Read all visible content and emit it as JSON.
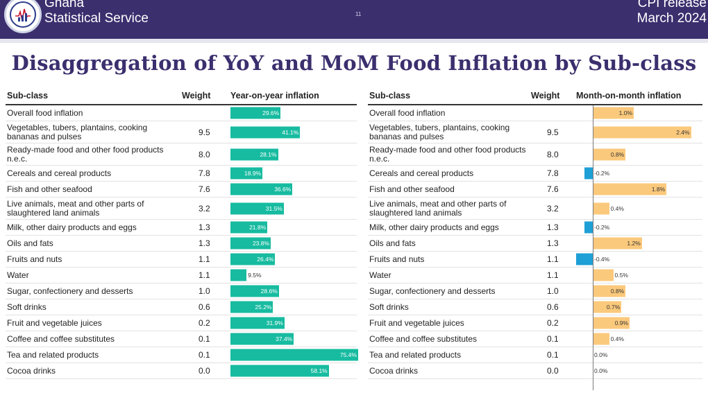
{
  "header": {
    "org_line1": "Ghana",
    "org_line2": "Statistical Service",
    "page_number": "11",
    "release_line1": "CPI release",
    "release_line2": "March  2024",
    "logo_text": "GHANA STATISTICAL SERVICE"
  },
  "title": "Disaggregation of YoY and MoM Food Inflation by Sub-class",
  "colors": {
    "banner": "#3b2f6e",
    "yoy_bar": "#17bba0",
    "mom_positive": "#fbc97c",
    "mom_negative": "#1e9fd6"
  },
  "yoy_table": {
    "headers": {
      "subclass": "Sub-class",
      "weight": "Weight",
      "value": "Year-on-year inflation"
    },
    "rows": [
      {
        "name": "Overall food inflation",
        "weight": "",
        "value": 29.6,
        "label": "29.6%"
      },
      {
        "name": "Vegetables, tubers, plantains, cooking bananas and pulses",
        "weight": "9.5",
        "value": 41.1,
        "label": "41.1%"
      },
      {
        "name": "Ready-made food and other food products n.e.c.",
        "weight": "8.0",
        "value": 28.1,
        "label": "28.1%"
      },
      {
        "name": "Cereals and cereal products",
        "weight": "7.8",
        "value": 18.9,
        "label": "18.9%"
      },
      {
        "name": "Fish and other seafood",
        "weight": "7.6",
        "value": 36.6,
        "label": "36.6%"
      },
      {
        "name": "Live animals, meat and other parts of slaughtered land animals",
        "weight": "3.2",
        "value": 31.5,
        "label": "31.5%"
      },
      {
        "name": "Milk, other dairy products and eggs",
        "weight": "1.3",
        "value": 21.8,
        "label": "21.8%"
      },
      {
        "name": "Oils and fats",
        "weight": "1.3",
        "value": 23.8,
        "label": "23.8%"
      },
      {
        "name": "Fruits and nuts",
        "weight": "1.1",
        "value": 26.4,
        "label": "26.4%"
      },
      {
        "name": "Water",
        "weight": "1.1",
        "value": 9.5,
        "label": "9.5%"
      },
      {
        "name": "Sugar, confectionery and desserts",
        "weight": "1.0",
        "value": 28.6,
        "label": "28.6%"
      },
      {
        "name": "Soft drinks",
        "weight": "0.6",
        "value": 25.2,
        "label": "25.2%"
      },
      {
        "name": "Fruit and vegetable juices",
        "weight": "0.2",
        "value": 31.9,
        "label": "31.9%"
      },
      {
        "name": "Coffee and coffee substitutes",
        "weight": "0.1",
        "value": 37.4,
        "label": "37.4%"
      },
      {
        "name": "Tea and related products",
        "weight": "0.1",
        "value": 75.4,
        "label": "75.4%"
      },
      {
        "name": "Cocoa drinks",
        "weight": "0.0",
        "value": 58.1,
        "label": "58.1%"
      }
    ]
  },
  "mom_table": {
    "headers": {
      "subclass": "Sub-class",
      "weight": "Weight",
      "value": "Month-on-month inflation"
    },
    "rows": [
      {
        "name": "Overall food inflation",
        "weight": "",
        "value": 1.0,
        "label": "1.0%"
      },
      {
        "name": "Vegetables, tubers, plantains, cooking bananas and pulses",
        "weight": "9.5",
        "value": 2.4,
        "label": "2.4%"
      },
      {
        "name": "Ready-made food and other food products n.e.c.",
        "weight": "8.0",
        "value": 0.8,
        "label": "0.8%"
      },
      {
        "name": "Cereals and cereal products",
        "weight": "7.8",
        "value": -0.2,
        "label": "-0.2%"
      },
      {
        "name": "Fish and other seafood",
        "weight": "7.6",
        "value": 1.8,
        "label": "1.8%"
      },
      {
        "name": "Live animals, meat and other parts of slaughtered land animals",
        "weight": "3.2",
        "value": 0.4,
        "label": "0.4%"
      },
      {
        "name": "Milk, other dairy products and eggs",
        "weight": "1.3",
        "value": -0.2,
        "label": "-0.2%"
      },
      {
        "name": "Oils and fats",
        "weight": "1.3",
        "value": 1.2,
        "label": "1.2%"
      },
      {
        "name": "Fruits and nuts",
        "weight": "1.1",
        "value": -0.4,
        "label": "-0.4%"
      },
      {
        "name": "Water",
        "weight": "1.1",
        "value": 0.5,
        "label": "0.5%"
      },
      {
        "name": "Sugar, confectionery and desserts",
        "weight": "1.0",
        "value": 0.8,
        "label": "0.8%"
      },
      {
        "name": "Soft drinks",
        "weight": "0.6",
        "value": 0.7,
        "label": "0.7%"
      },
      {
        "name": "Fruit and vegetable juices",
        "weight": "0.2",
        "value": 0.9,
        "label": "0.9%"
      },
      {
        "name": "Coffee and coffee substitutes",
        "weight": "0.1",
        "value": 0.4,
        "label": "0.4%"
      },
      {
        "name": "Tea and related products",
        "weight": "0.1",
        "value": 0.0,
        "label": "0.0%"
      },
      {
        "name": "Cocoa drinks",
        "weight": "0.0",
        "value": 0.0,
        "label": "0.0%"
      }
    ]
  }
}
